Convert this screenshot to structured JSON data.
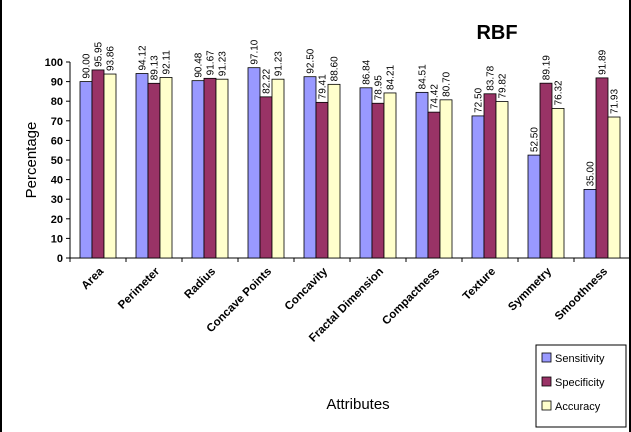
{
  "chart_data": {
    "type": "bar",
    "title": "RBF",
    "xlabel": "Attributes",
    "ylabel": "Percentage",
    "ylim": [
      0,
      100
    ],
    "yticks": [
      0,
      10,
      20,
      30,
      40,
      50,
      60,
      70,
      80,
      90,
      100
    ],
    "grid": false,
    "legend_position": "bottom-right",
    "categories": [
      "Area",
      "Perimeter",
      "Radius",
      "Concave Points",
      "Concavity",
      "Fractal Dimension",
      "Compactness",
      "Texture",
      "Symmetry",
      "Smoothness"
    ],
    "series": [
      {
        "name": "Sensitivity",
        "color": "#9999ff",
        "values": [
          90.0,
          94.12,
          90.48,
          97.1,
          92.5,
          86.84,
          84.51,
          72.5,
          52.5,
          35.0
        ],
        "labels": [
          "90.00",
          "94.12",
          "90.48",
          "97.10",
          "92.50",
          "86.84",
          "84.51",
          "72.50",
          "52.50",
          "35.00"
        ]
      },
      {
        "name": "Specificity",
        "color": "#993366",
        "values": [
          95.95,
          89.13,
          91.67,
          82.22,
          79.41,
          78.95,
          74.42,
          83.78,
          89.19,
          91.89
        ],
        "labels": [
          "95.95",
          "89.13",
          "91.67",
          "82.22",
          "79.41",
          "78.95",
          "74.42",
          "83.78",
          "89.19",
          "91.89"
        ]
      },
      {
        "name": "Accuracy",
        "color": "#ffffcc",
        "values": [
          93.86,
          92.11,
          91.23,
          91.23,
          88.6,
          84.21,
          80.7,
          79.82,
          76.32,
          71.93
        ],
        "labels": [
          "93.86",
          "92.11",
          "91.23",
          "91.23",
          "88.60",
          "84.21",
          "80.70",
          "79.82",
          "76.32",
          "71.93"
        ]
      }
    ]
  }
}
